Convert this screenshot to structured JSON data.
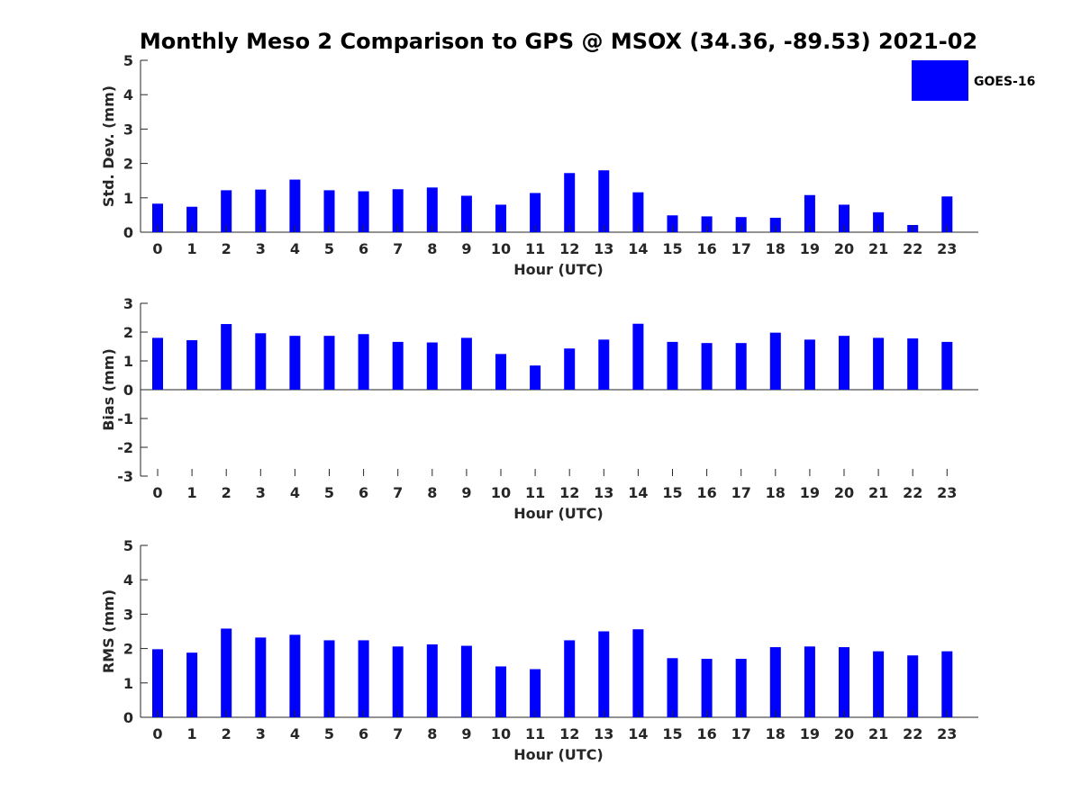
{
  "title": "Monthly Meso 2 Comparison to GPS @ MSOX (34.36, -89.53) 2021-02",
  "legend": {
    "label": "GOES-16",
    "color": "#0000ff",
    "placement": "top-right"
  },
  "chart_data": [
    {
      "type": "bar",
      "categories": [
        "0",
        "1",
        "2",
        "3",
        "4",
        "5",
        "6",
        "7",
        "8",
        "9",
        "10",
        "11",
        "12",
        "13",
        "14",
        "15",
        "16",
        "17",
        "18",
        "19",
        "20",
        "21",
        "22",
        "23"
      ],
      "series": [
        {
          "name": "GOES-16",
          "color": "#0000ff",
          "values": [
            0.83,
            0.74,
            1.22,
            1.24,
            1.53,
            1.22,
            1.19,
            1.25,
            1.3,
            1.06,
            0.8,
            1.14,
            1.72,
            1.8,
            1.16,
            0.49,
            0.46,
            0.44,
            0.42,
            1.08,
            0.8,
            0.58,
            0.21,
            1.04
          ]
        }
      ],
      "xlabel": "Hour (UTC)",
      "ylabel": "Std. Dev. (mm)",
      "ylim": [
        0,
        5
      ],
      "yticks": [
        "0",
        "1",
        "2",
        "3",
        "4",
        "5"
      ],
      "grid": false
    },
    {
      "type": "bar",
      "categories": [
        "0",
        "1",
        "2",
        "3",
        "4",
        "5",
        "6",
        "7",
        "8",
        "9",
        "10",
        "11",
        "12",
        "13",
        "14",
        "15",
        "16",
        "17",
        "18",
        "19",
        "20",
        "21",
        "22",
        "23"
      ],
      "series": [
        {
          "name": "GOES-16",
          "color": "#0000ff",
          "values": [
            1.8,
            1.72,
            2.28,
            1.96,
            1.87,
            1.87,
            1.93,
            1.66,
            1.64,
            1.8,
            1.24,
            0.84,
            1.43,
            1.74,
            2.29,
            1.66,
            1.62,
            1.62,
            1.98,
            1.74,
            1.87,
            1.8,
            1.78,
            1.66
          ]
        }
      ],
      "xlabel": "Hour (UTC)",
      "ylabel": "Bias (mm)",
      "ylim": [
        -3,
        3
      ],
      "yticks": [
        "-3",
        "-2",
        "-1",
        "0",
        "1",
        "2",
        "3"
      ],
      "grid": false
    },
    {
      "type": "bar",
      "categories": [
        "0",
        "1",
        "2",
        "3",
        "4",
        "5",
        "6",
        "7",
        "8",
        "9",
        "10",
        "11",
        "12",
        "13",
        "14",
        "15",
        "16",
        "17",
        "18",
        "19",
        "20",
        "21",
        "22",
        "23"
      ],
      "series": [
        {
          "name": "GOES-16",
          "color": "#0000ff",
          "values": [
            1.98,
            1.88,
            2.58,
            2.32,
            2.4,
            2.24,
            2.24,
            2.06,
            2.12,
            2.08,
            1.48,
            1.4,
            2.24,
            2.5,
            2.56,
            1.72,
            1.7,
            1.7,
            2.04,
            2.06,
            2.04,
            1.92,
            1.8,
            1.92
          ]
        }
      ],
      "xlabel": "Hour (UTC)",
      "ylabel": "RMS (mm)",
      "ylim": [
        0,
        5
      ],
      "yticks": [
        "0",
        "1",
        "2",
        "3",
        "4",
        "5"
      ],
      "grid": false
    }
  ]
}
